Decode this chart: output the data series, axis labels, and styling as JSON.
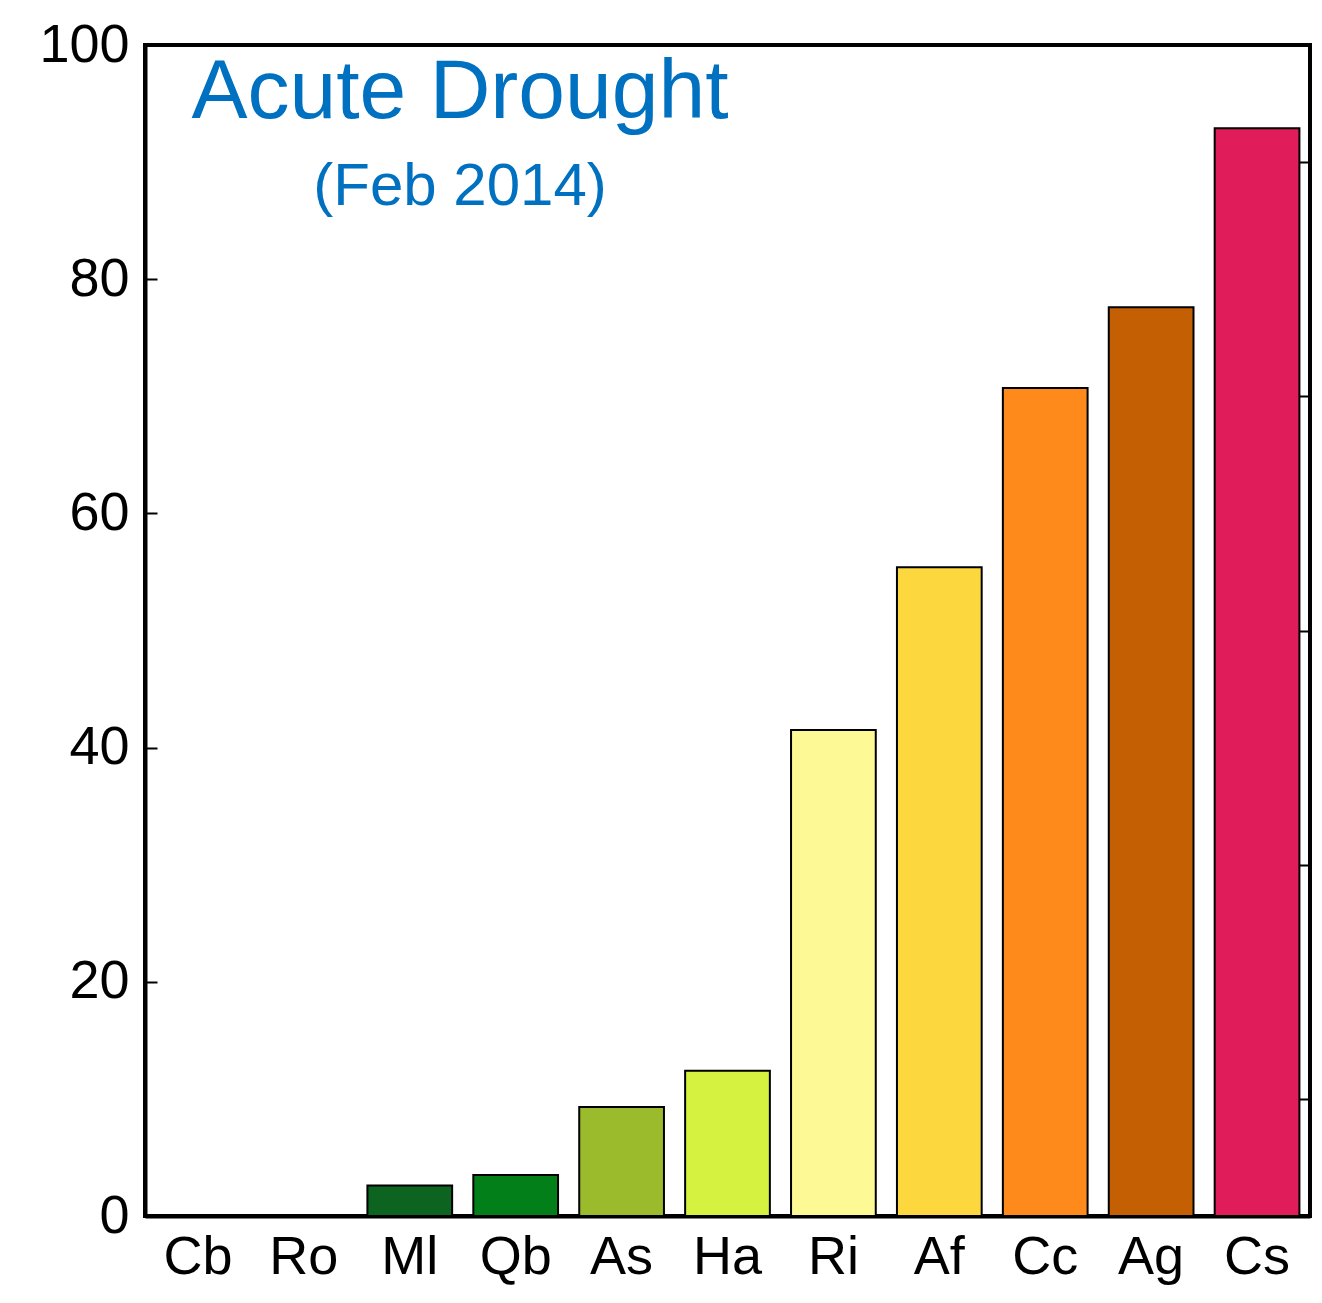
{
  "chart_data": {
    "type": "bar",
    "title": "Acute Drought",
    "subtitle": "(Feb 2014)",
    "categories": [
      "Cb",
      "Ro",
      "Ml",
      "Qb",
      "As",
      "Ha",
      "Ri",
      "Af",
      "Cc",
      "Ag",
      "Cs"
    ],
    "values": [
      null,
      null,
      2.6,
      3.5,
      9.3,
      12.4,
      41.5,
      55.4,
      70.7,
      77.6,
      92.9
    ],
    "colors": [
      null,
      null,
      "#0c6420",
      "#027f18",
      "#9bbb2d",
      "#d4f23f",
      "#fdf994",
      "#fdd73e",
      "#fe8a1c",
      "#c55f04",
      "#e01c5b"
    ],
    "ylim": [
      0,
      100
    ],
    "yticks": [
      0,
      {
        "value": 10,
        "label": null
      },
      20,
      {
        "value": 30,
        "label": null
      },
      40,
      {
        "value": 50,
        "label": null
      },
      60,
      {
        "value": 70,
        "label": null
      },
      80,
      {
        "value": 90,
        "label": null
      },
      100
    ],
    "grid": false
  }
}
